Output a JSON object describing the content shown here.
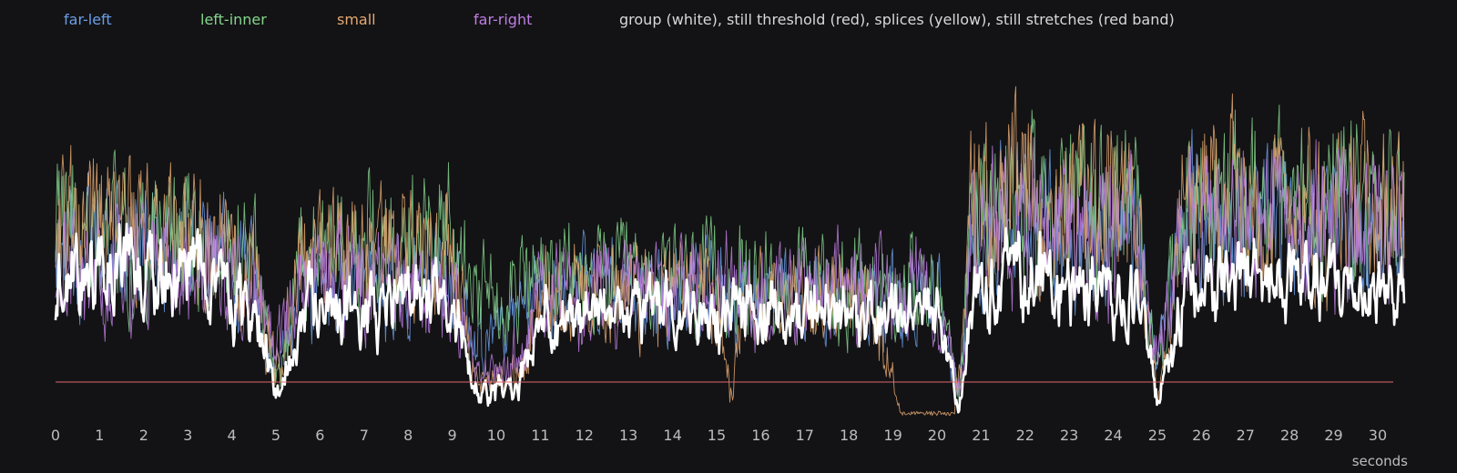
{
  "chart_data": {
    "type": "line",
    "title": "",
    "xlabel": "seconds",
    "ylabel": "",
    "xlim": [
      0,
      30.6
    ],
    "ylim": [
      0,
      1
    ],
    "grid": false,
    "legend_placement": "top-left",
    "x_ticks": [
      "0",
      "1",
      "2",
      "3",
      "4",
      "5",
      "6",
      "7",
      "8",
      "9",
      "10",
      "11",
      "12",
      "13",
      "14",
      "15",
      "16",
      "17",
      "18",
      "19",
      "20",
      "21",
      "22",
      "23",
      "24",
      "25",
      "26",
      "27",
      "28",
      "29",
      "30"
    ],
    "annotation": "group (white), still threshold (red), splices (yellow), still stretches (red band)",
    "threshold": {
      "name": "still threshold",
      "value": 0.1,
      "color": "#e0676f"
    },
    "series": [
      {
        "name": "far-left",
        "color": "#6b9ee8",
        "width": 0.9,
        "activity": [
          [
            0,
            0.72
          ],
          [
            3,
            0.72
          ],
          [
            4.5,
            0.62
          ],
          [
            5,
            0.2
          ],
          [
            5.6,
            0.55
          ],
          [
            9,
            0.6
          ],
          [
            9.5,
            0.35
          ],
          [
            10.5,
            0.4
          ],
          [
            11,
            0.55
          ],
          [
            20,
            0.5
          ],
          [
            20.5,
            0.1
          ],
          [
            20.8,
            0.85
          ],
          [
            24.5,
            0.8
          ],
          [
            25,
            0.25
          ],
          [
            25.6,
            0.85
          ],
          [
            30.6,
            0.8
          ]
        ]
      },
      {
        "name": "left-inner",
        "color": "#86d48d",
        "width": 0.9,
        "activity": [
          [
            0,
            0.82
          ],
          [
            3,
            0.8
          ],
          [
            4.5,
            0.7
          ],
          [
            5,
            0.15
          ],
          [
            5.6,
            0.7
          ],
          [
            9,
            0.8
          ],
          [
            9.5,
            0.5
          ],
          [
            10.5,
            0.6
          ],
          [
            11,
            0.6
          ],
          [
            20,
            0.55
          ],
          [
            20.5,
            0.08
          ],
          [
            20.8,
            0.95
          ],
          [
            24.5,
            0.9
          ],
          [
            25,
            0.2
          ],
          [
            25.6,
            0.95
          ],
          [
            30.6,
            0.9
          ]
        ]
      },
      {
        "name": "small",
        "color": "#e5a871",
        "width": 0.9,
        "activity": [
          [
            0,
            0.85
          ],
          [
            3,
            0.82
          ],
          [
            4.5,
            0.6
          ],
          [
            5,
            0.2
          ],
          [
            5.6,
            0.7
          ],
          [
            9,
            0.7
          ],
          [
            9.5,
            0.15
          ],
          [
            10.5,
            0.2
          ],
          [
            11,
            0.55
          ],
          [
            15,
            0.55
          ],
          [
            15.3,
            0.08
          ],
          [
            15.6,
            0.5
          ],
          [
            18.5,
            0.5
          ],
          [
            19.2,
            0.02
          ],
          [
            20.4,
            0.02
          ],
          [
            20.8,
            0.95
          ],
          [
            24.5,
            0.92
          ],
          [
            25,
            0.05
          ],
          [
            25.6,
            0.95
          ],
          [
            30.6,
            0.92
          ]
        ]
      },
      {
        "name": "far-right",
        "color": "#c07ee3",
        "width": 0.9,
        "activity": [
          [
            0,
            0.65
          ],
          [
            3,
            0.65
          ],
          [
            4.5,
            0.6
          ],
          [
            5,
            0.3
          ],
          [
            5.6,
            0.6
          ],
          [
            9,
            0.55
          ],
          [
            9.5,
            0.2
          ],
          [
            10.5,
            0.25
          ],
          [
            11,
            0.55
          ],
          [
            20,
            0.55
          ],
          [
            20.5,
            0.1
          ],
          [
            20.8,
            0.85
          ],
          [
            24.5,
            0.8
          ],
          [
            25,
            0.25
          ],
          [
            25.6,
            0.85
          ],
          [
            30.6,
            0.8
          ]
        ]
      },
      {
        "name": "group",
        "color": "#ffffff",
        "width": 2.6,
        "activity": [
          [
            0,
            0.6
          ],
          [
            3,
            0.62
          ],
          [
            4.5,
            0.5
          ],
          [
            5,
            0.08
          ],
          [
            5.6,
            0.45
          ],
          [
            9,
            0.52
          ],
          [
            9.5,
            0.12
          ],
          [
            10.5,
            0.15
          ],
          [
            11,
            0.45
          ],
          [
            20,
            0.45
          ],
          [
            20.5,
            0.02
          ],
          [
            20.8,
            0.6
          ],
          [
            24.5,
            0.55
          ],
          [
            25,
            0.05
          ],
          [
            25.6,
            0.6
          ],
          [
            30.6,
            0.55
          ]
        ]
      }
    ]
  }
}
